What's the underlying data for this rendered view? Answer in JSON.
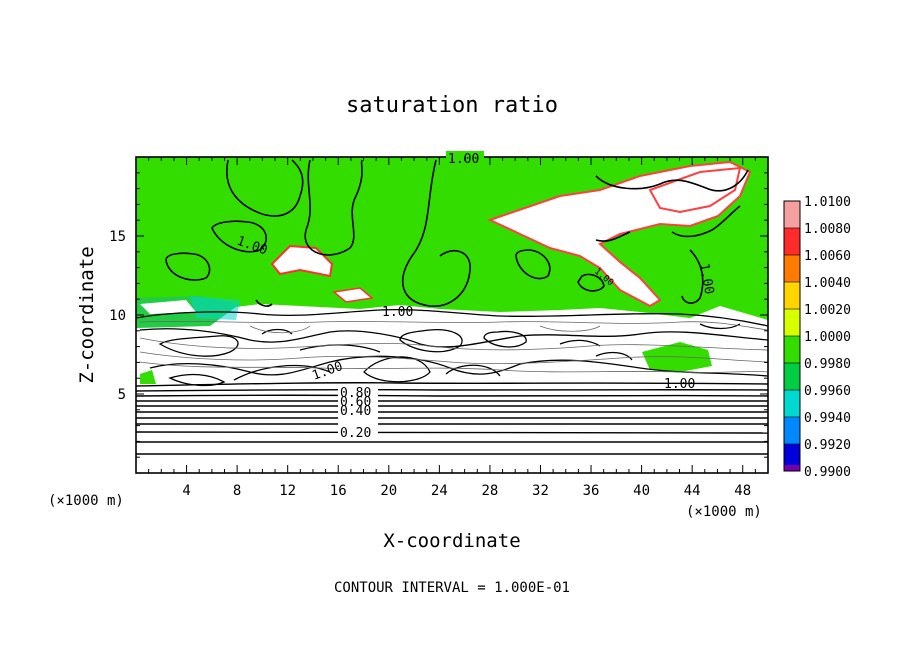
{
  "chart_data": {
    "type": "heatmap",
    "title": "saturation ratio",
    "xlabel": "X-coordinate",
    "ylabel": "Z-coordinate",
    "x_unit_left": "(×1000 m)",
    "x_unit_right": "(×1000 m)",
    "xlim": [
      0,
      50
    ],
    "ylim": [
      0,
      20
    ],
    "xticks": [
      4,
      8,
      12,
      16,
      20,
      24,
      28,
      32,
      36,
      40,
      44,
      48
    ],
    "yticks": [
      5,
      10,
      15
    ],
    "colorbar": {
      "range": [
        0.99,
        1.01
      ],
      "labels": [
        "1.0100",
        "1.0080",
        "1.0060",
        "1.0040",
        "1.0020",
        "1.0000",
        "0.9980",
        "0.9960",
        "0.9940",
        "0.9920",
        "0.9900"
      ],
      "colors": [
        "#f4a0a0",
        "#ff2a2a",
        "#ff7a00",
        "#ffd400",
        "#d8ff00",
        "#33dd00",
        "#00cc44",
        "#00d8d0",
        "#0088ff",
        "#0000dd",
        "#7700aa"
      ]
    },
    "contour_labels": [
      "1.00",
      "1.00",
      "1.00",
      "1.00",
      "1.00",
      "1.00",
      "1.00",
      "0.80",
      "0.60",
      "0.40",
      "0.20"
    ],
    "contour_interval_text": "CONTOUR INTERVAL = 1.000E-01"
  }
}
